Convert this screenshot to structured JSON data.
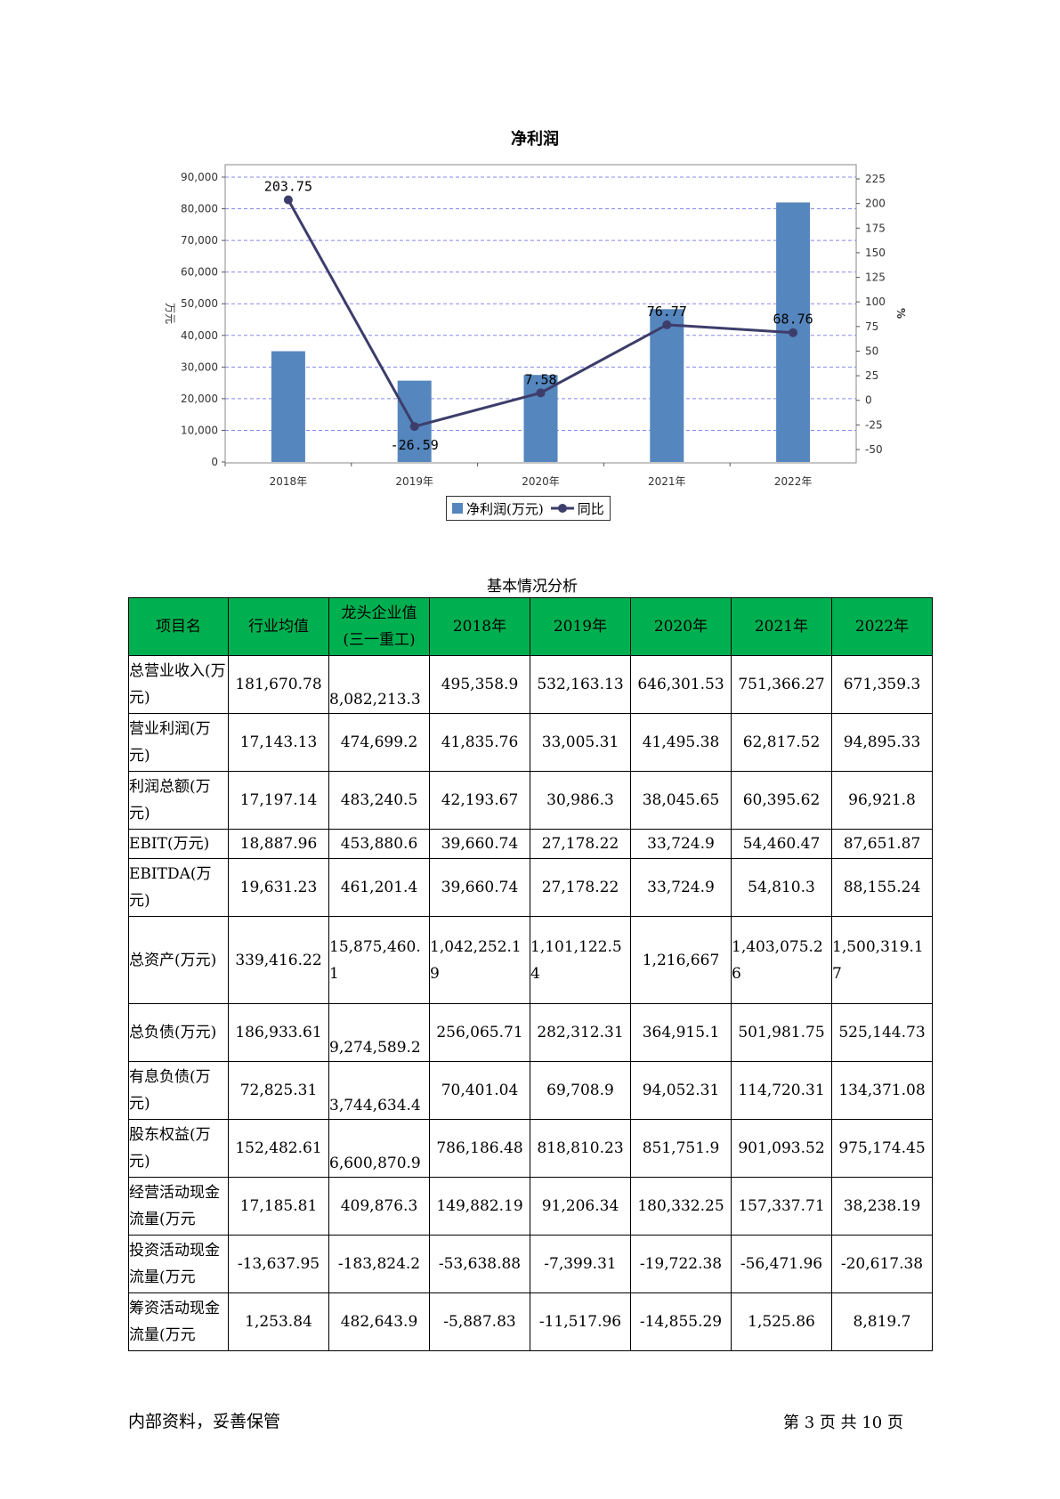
{
  "chart_data": {
    "type": "bar",
    "title": "净利润",
    "categories": [
      "2018年",
      "2019年",
      "2020年",
      "2021年",
      "2022年"
    ],
    "series": [
      {
        "name": "净利润(万元)",
        "type": "bar",
        "axis": "left",
        "values": [
          35000,
          25700,
          27500,
          48300,
          82000
        ],
        "color": "#5586bd"
      },
      {
        "name": "同比",
        "type": "line",
        "axis": "right",
        "values": [
          203.75,
          -26.59,
          7.58,
          76.77,
          68.76
        ],
        "color": "#3d3d6b",
        "labels": [
          "203.75",
          "-26.59",
          "7.58",
          "76.77",
          "68.76"
        ]
      }
    ],
    "ylabel": "万元",
    "y2label": "%",
    "ylim": [
      0,
      90000
    ],
    "yticks": [
      "0",
      "10,000",
      "20,000",
      "30,000",
      "40,000",
      "50,000",
      "60,000",
      "70,000",
      "80,000",
      "90,000"
    ],
    "y2lim": [
      -50,
      225
    ],
    "y2ticks": [
      "-50",
      "-25",
      "0",
      "25",
      "50",
      "75",
      "100",
      "125",
      "150",
      "175",
      "200",
      "225"
    ],
    "grid": true,
    "legend": "bottom"
  },
  "table": {
    "caption": "基本情况分析",
    "headers": [
      "项目名",
      "行业均值",
      "龙头企业值(三一重工)",
      "2018年",
      "2019年",
      "2020年",
      "2021年",
      "2022年"
    ],
    "rows": [
      {
        "name": "总营业收入(万元)",
        "values": [
          "181,670.78",
          "8,082,213.3",
          "495,358.9",
          "532,163.13",
          "646,301.53",
          "751,366.27",
          "671,359.3"
        ]
      },
      {
        "name": "营业利润(万元)",
        "values": [
          "17,143.13",
          "474,699.2",
          "41,835.76",
          "33,005.31",
          "41,495.38",
          "62,817.52",
          "94,895.33"
        ]
      },
      {
        "name": "利润总额(万元)",
        "values": [
          "17,197.14",
          "483,240.5",
          "42,193.67",
          "30,986.3",
          "38,045.65",
          "60,395.62",
          "96,921.8"
        ]
      },
      {
        "name": "EBIT(万元)",
        "values": [
          "18,887.96",
          "453,880.6",
          "39,660.74",
          "27,178.22",
          "33,724.9",
          "54,460.47",
          "87,651.87"
        ]
      },
      {
        "name": "EBITDA(万元)",
        "values": [
          "19,631.23",
          "461,201.4",
          "39,660.74",
          "27,178.22",
          "33,724.9",
          "54,810.3",
          "88,155.24"
        ]
      },
      {
        "name": "总资产(万元)",
        "values": [
          "339,416.22",
          "15,875,460.1",
          "1,042,252.19",
          "1,101,122.54",
          "1,216,667",
          "1,403,075.26",
          "1,500,319.17"
        ]
      },
      {
        "name": "总负债(万元)",
        "values": [
          "186,933.61",
          "9,274,589.2",
          "256,065.71",
          "282,312.31",
          "364,915.1",
          "501,981.75",
          "525,144.73"
        ]
      },
      {
        "name": "有息负债(万元)",
        "values": [
          "72,825.31",
          "3,744,634.4",
          "70,401.04",
          "69,708.9",
          "94,052.31",
          "114,720.31",
          "134,371.08"
        ]
      },
      {
        "name": "股东权益(万元)",
        "values": [
          "152,482.61",
          "6,600,870.9",
          "786,186.48",
          "818,810.23",
          "851,751.9",
          "901,093.52",
          "975,174.45"
        ]
      },
      {
        "name": "经营活动现金流量(万元",
        "values": [
          "17,185.81",
          "409,876.3",
          "149,882.19",
          "91,206.34",
          "180,332.25",
          "157,337.71",
          "38,238.19"
        ]
      },
      {
        "name": "投资活动现金流量(万元",
        "values": [
          "-13,637.95",
          "-183,824.2",
          "-53,638.88",
          "-7,399.31",
          "-19,722.38",
          "-56,471.96",
          "-20,617.38"
        ]
      },
      {
        "name": "筹资活动现金流量(万元",
        "values": [
          "1,253.84",
          "482,643.9",
          "-5,887.83",
          "-11,517.96",
          "-14,855.29",
          "1,525.86",
          "8,819.7"
        ]
      }
    ]
  },
  "footer": {
    "left": "内部资料，妥善保管",
    "right": "第 3 页  共 10 页"
  }
}
